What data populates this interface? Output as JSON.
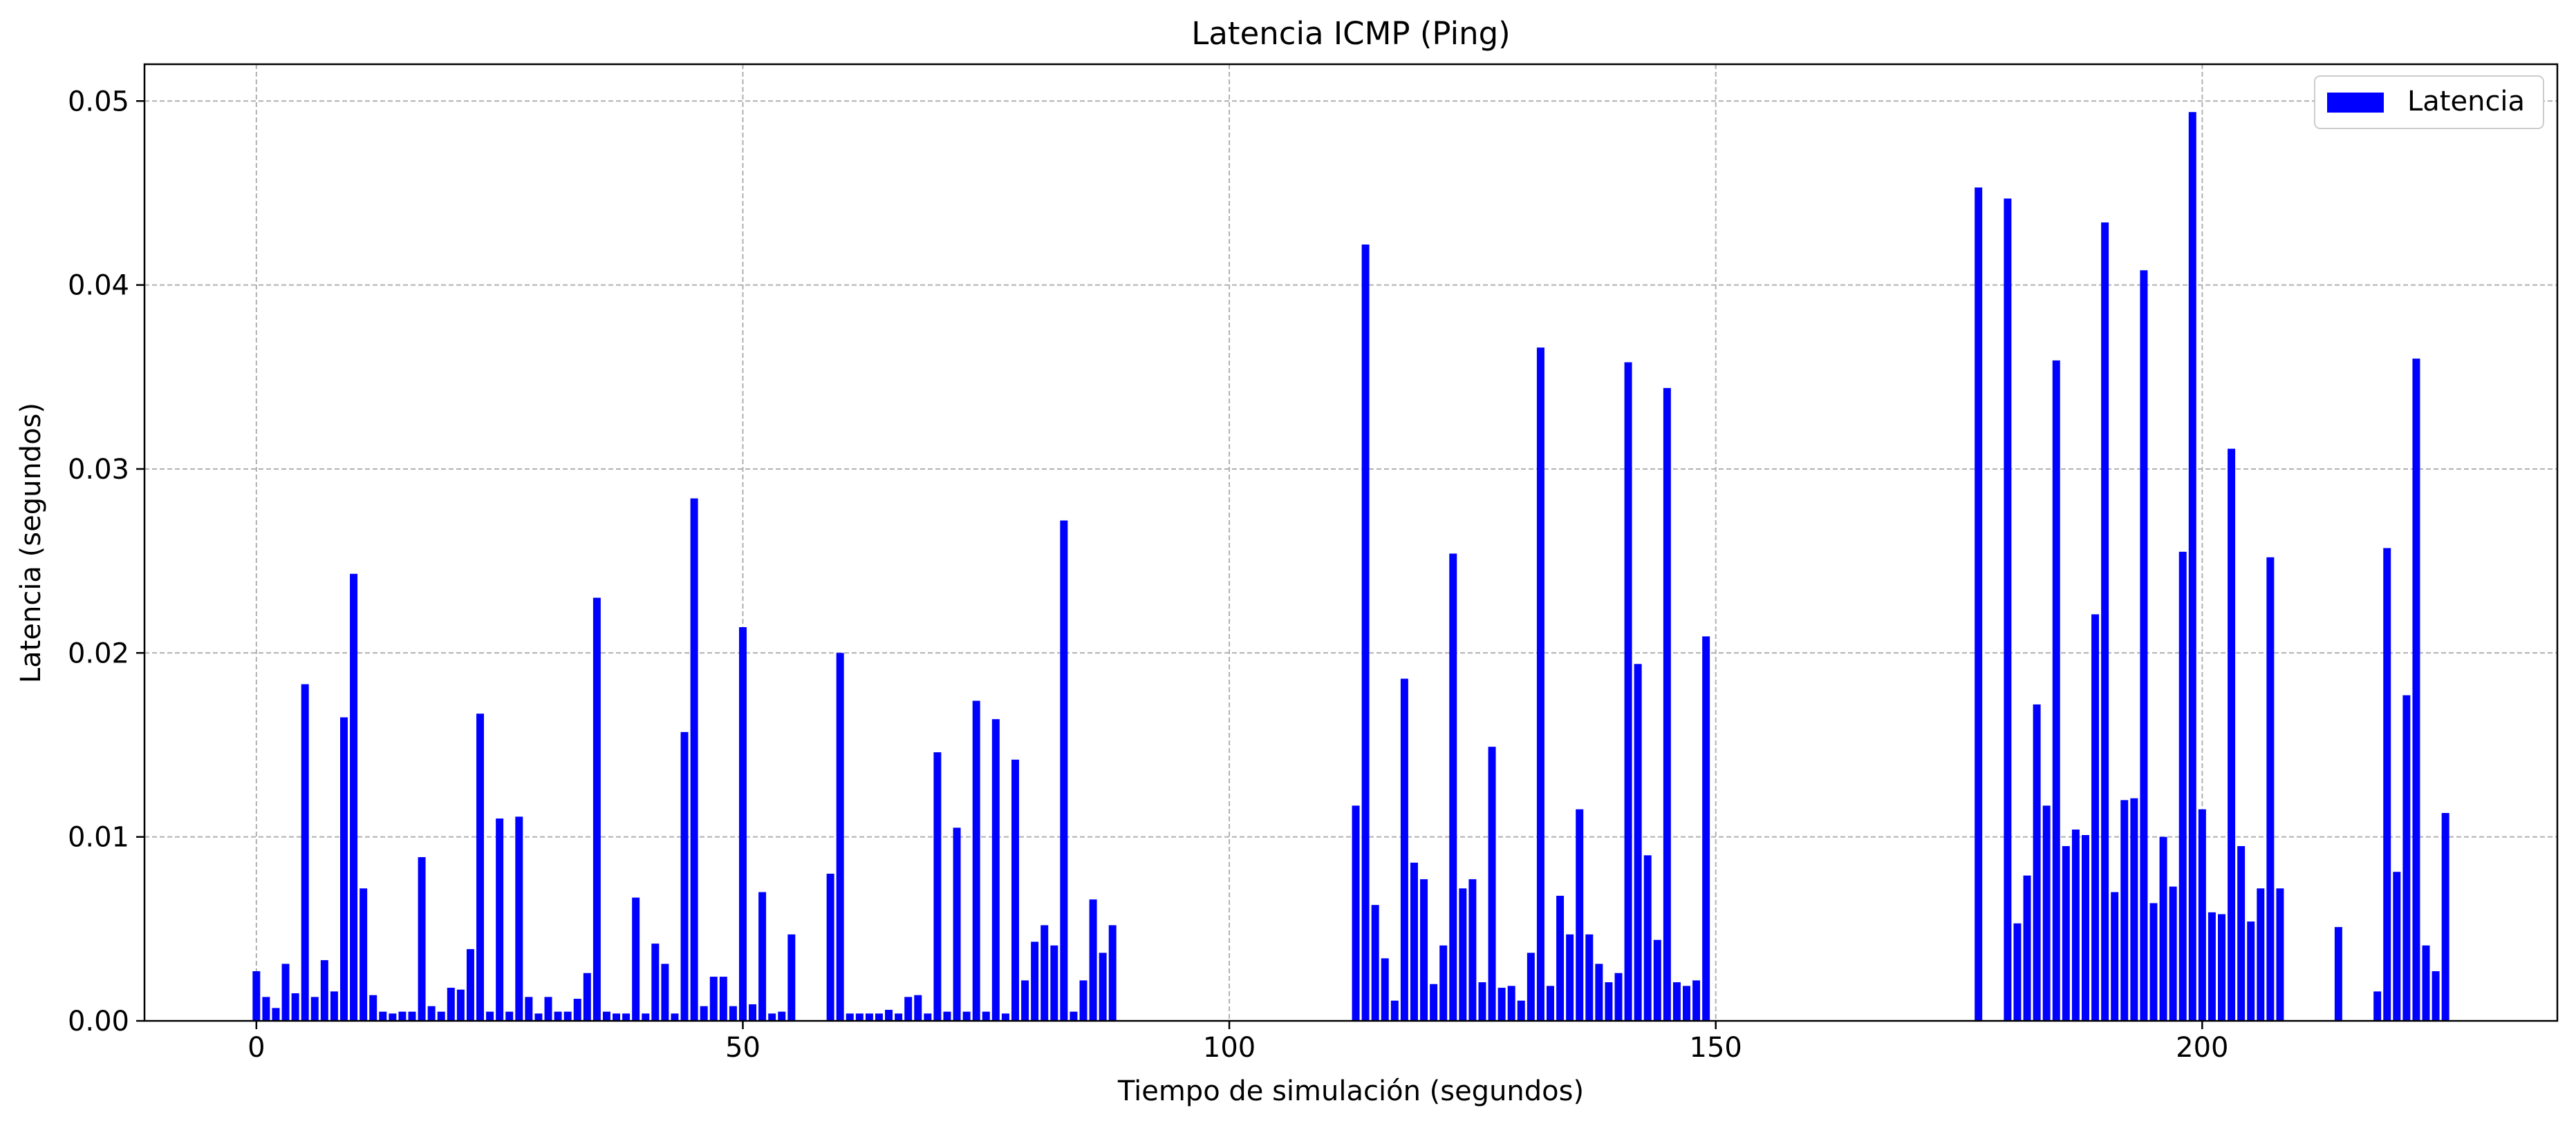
{
  "chart_data": {
    "type": "bar",
    "title": "Latencia ICMP (Ping)",
    "xlabel": "Tiempo de simulación (segundos)",
    "ylabel": "Latencia (segundos)",
    "xlim": [
      -11.5,
      236.5
    ],
    "ylim": [
      0,
      0.052
    ],
    "grid": true,
    "legend_position": "top-right",
    "bar_color": "#0000ff",
    "x_ticks": [
      {
        "value": 0,
        "label": "0"
      },
      {
        "value": 50,
        "label": "50"
      },
      {
        "value": 100,
        "label": "100"
      },
      {
        "value": 150,
        "label": "150"
      },
      {
        "value": 200,
        "label": "200"
      }
    ],
    "y_ticks": [
      {
        "value": 0,
        "label": "0.00"
      },
      {
        "value": 0.01,
        "label": "0.01"
      },
      {
        "value": 0.02,
        "label": "0.02"
      },
      {
        "value": 0.03,
        "label": "0.03"
      },
      {
        "value": 0.04,
        "label": "0.04"
      },
      {
        "value": 0.05,
        "label": "0.05"
      }
    ],
    "series": [
      {
        "name": "Latencia",
        "points": [
          [
            0,
            0.0027
          ],
          [
            1,
            0.0013
          ],
          [
            2,
            0.0007
          ],
          [
            3,
            0.0031
          ],
          [
            4,
            0.0015
          ],
          [
            5,
            0.0183
          ],
          [
            6,
            0.0013
          ],
          [
            7,
            0.0033
          ],
          [
            8,
            0.0016
          ],
          [
            9,
            0.0165
          ],
          [
            10,
            0.0243
          ],
          [
            11,
            0.0072
          ],
          [
            12,
            0.0014
          ],
          [
            13,
            0.0005
          ],
          [
            14,
            0.0004
          ],
          [
            15,
            0.0005
          ],
          [
            16,
            0.0005
          ],
          [
            17,
            0.0089
          ],
          [
            18,
            0.0008
          ],
          [
            19,
            0.0005
          ],
          [
            20,
            0.0018
          ],
          [
            21,
            0.0017
          ],
          [
            22,
            0.0039
          ],
          [
            23,
            0.0167
          ],
          [
            24,
            0.0005
          ],
          [
            25,
            0.011
          ],
          [
            26,
            0.0005
          ],
          [
            27,
            0.0111
          ],
          [
            28,
            0.0013
          ],
          [
            29,
            0.0004
          ],
          [
            30,
            0.0013
          ],
          [
            31,
            0.0005
          ],
          [
            32,
            0.0005
          ],
          [
            33,
            0.0012
          ],
          [
            34,
            0.0026
          ],
          [
            35,
            0.023
          ],
          [
            36,
            0.0005
          ],
          [
            37,
            0.0004
          ],
          [
            38,
            0.0004
          ],
          [
            39,
            0.0067
          ],
          [
            40,
            0.0004
          ],
          [
            41,
            0.0042
          ],
          [
            42,
            0.0031
          ],
          [
            43,
            0.0004
          ],
          [
            44,
            0.0157
          ],
          [
            45,
            0.0284
          ],
          [
            46,
            0.0008
          ],
          [
            47,
            0.0024
          ],
          [
            48,
            0.0024
          ],
          [
            49,
            0.0008
          ],
          [
            50,
            0.0214
          ],
          [
            51,
            0.0009
          ],
          [
            52,
            0.007
          ],
          [
            53,
            0.0004
          ],
          [
            54,
            0.0005
          ],
          [
            55,
            0.0047
          ],
          [
            59,
            0.008
          ],
          [
            60,
            0.02
          ],
          [
            61,
            0.0004
          ],
          [
            62,
            0.0004
          ],
          [
            63,
            0.0004
          ],
          [
            64,
            0.0004
          ],
          [
            65,
            0.0006
          ],
          [
            66,
            0.0004
          ],
          [
            67,
            0.0013
          ],
          [
            68,
            0.0014
          ],
          [
            69,
            0.0004
          ],
          [
            70,
            0.0146
          ],
          [
            71,
            0.0005
          ],
          [
            72,
            0.0105
          ],
          [
            73,
            0.0005
          ],
          [
            74,
            0.0174
          ],
          [
            75,
            0.0005
          ],
          [
            76,
            0.0164
          ],
          [
            77,
            0.0004
          ],
          [
            78,
            0.0142
          ],
          [
            79,
            0.0022
          ],
          [
            80,
            0.0043
          ],
          [
            81,
            0.0052
          ],
          [
            82,
            0.0041
          ],
          [
            83,
            0.0272
          ],
          [
            84,
            0.0005
          ],
          [
            85,
            0.0022
          ],
          [
            86,
            0.0066
          ],
          [
            87,
            0.0037
          ],
          [
            88,
            0.0052
          ],
          [
            113,
            0.0117
          ],
          [
            114,
            0.0422
          ],
          [
            115,
            0.0063
          ],
          [
            116,
            0.0034
          ],
          [
            117,
            0.0011
          ],
          [
            118,
            0.0186
          ],
          [
            119,
            0.0086
          ],
          [
            120,
            0.0077
          ],
          [
            121,
            0.002
          ],
          [
            122,
            0.0041
          ],
          [
            123,
            0.0254
          ],
          [
            124,
            0.0072
          ],
          [
            125,
            0.0077
          ],
          [
            126,
            0.0021
          ],
          [
            127,
            0.0149
          ],
          [
            128,
            0.0018
          ],
          [
            129,
            0.0019
          ],
          [
            130,
            0.0011
          ],
          [
            131,
            0.0037
          ],
          [
            132,
            0.0366
          ],
          [
            133,
            0.0019
          ],
          [
            134,
            0.0068
          ],
          [
            135,
            0.0047
          ],
          [
            136,
            0.0115
          ],
          [
            137,
            0.0047
          ],
          [
            138,
            0.0031
          ],
          [
            139,
            0.0021
          ],
          [
            140,
            0.0026
          ],
          [
            141,
            0.0358
          ],
          [
            142,
            0.0194
          ],
          [
            143,
            0.009
          ],
          [
            144,
            0.0044
          ],
          [
            145,
            0.0344
          ],
          [
            146,
            0.0021
          ],
          [
            147,
            0.0019
          ],
          [
            148,
            0.0022
          ],
          [
            149,
            0.0209
          ],
          [
            177,
            0.0453
          ],
          [
            180,
            0.0447
          ],
          [
            181,
            0.0053
          ],
          [
            182,
            0.0079
          ],
          [
            183,
            0.0172
          ],
          [
            184,
            0.0117
          ],
          [
            185,
            0.0359
          ],
          [
            186,
            0.0095
          ],
          [
            187,
            0.0104
          ],
          [
            188,
            0.0101
          ],
          [
            189,
            0.0221
          ],
          [
            190,
            0.0434
          ],
          [
            191,
            0.007
          ],
          [
            192,
            0.012
          ],
          [
            193,
            0.0121
          ],
          [
            194,
            0.0408
          ],
          [
            195,
            0.0064
          ],
          [
            196,
            0.01
          ],
          [
            197,
            0.0073
          ],
          [
            198,
            0.0255
          ],
          [
            199,
            0.0494
          ],
          [
            200,
            0.0115
          ],
          [
            201,
            0.0059
          ],
          [
            202,
            0.0058
          ],
          [
            203,
            0.0311
          ],
          [
            204,
            0.0095
          ],
          [
            205,
            0.0054
          ],
          [
            206,
            0.0072
          ],
          [
            207,
            0.0252
          ],
          [
            208,
            0.0072
          ],
          [
            214,
            0.0051
          ],
          [
            218,
            0.0016
          ],
          [
            219,
            0.0257
          ],
          [
            220,
            0.0081
          ],
          [
            221,
            0.0177
          ],
          [
            222,
            0.036
          ],
          [
            223,
            0.0041
          ],
          [
            224,
            0.0027
          ],
          [
            225,
            0.0113
          ]
        ]
      }
    ]
  }
}
